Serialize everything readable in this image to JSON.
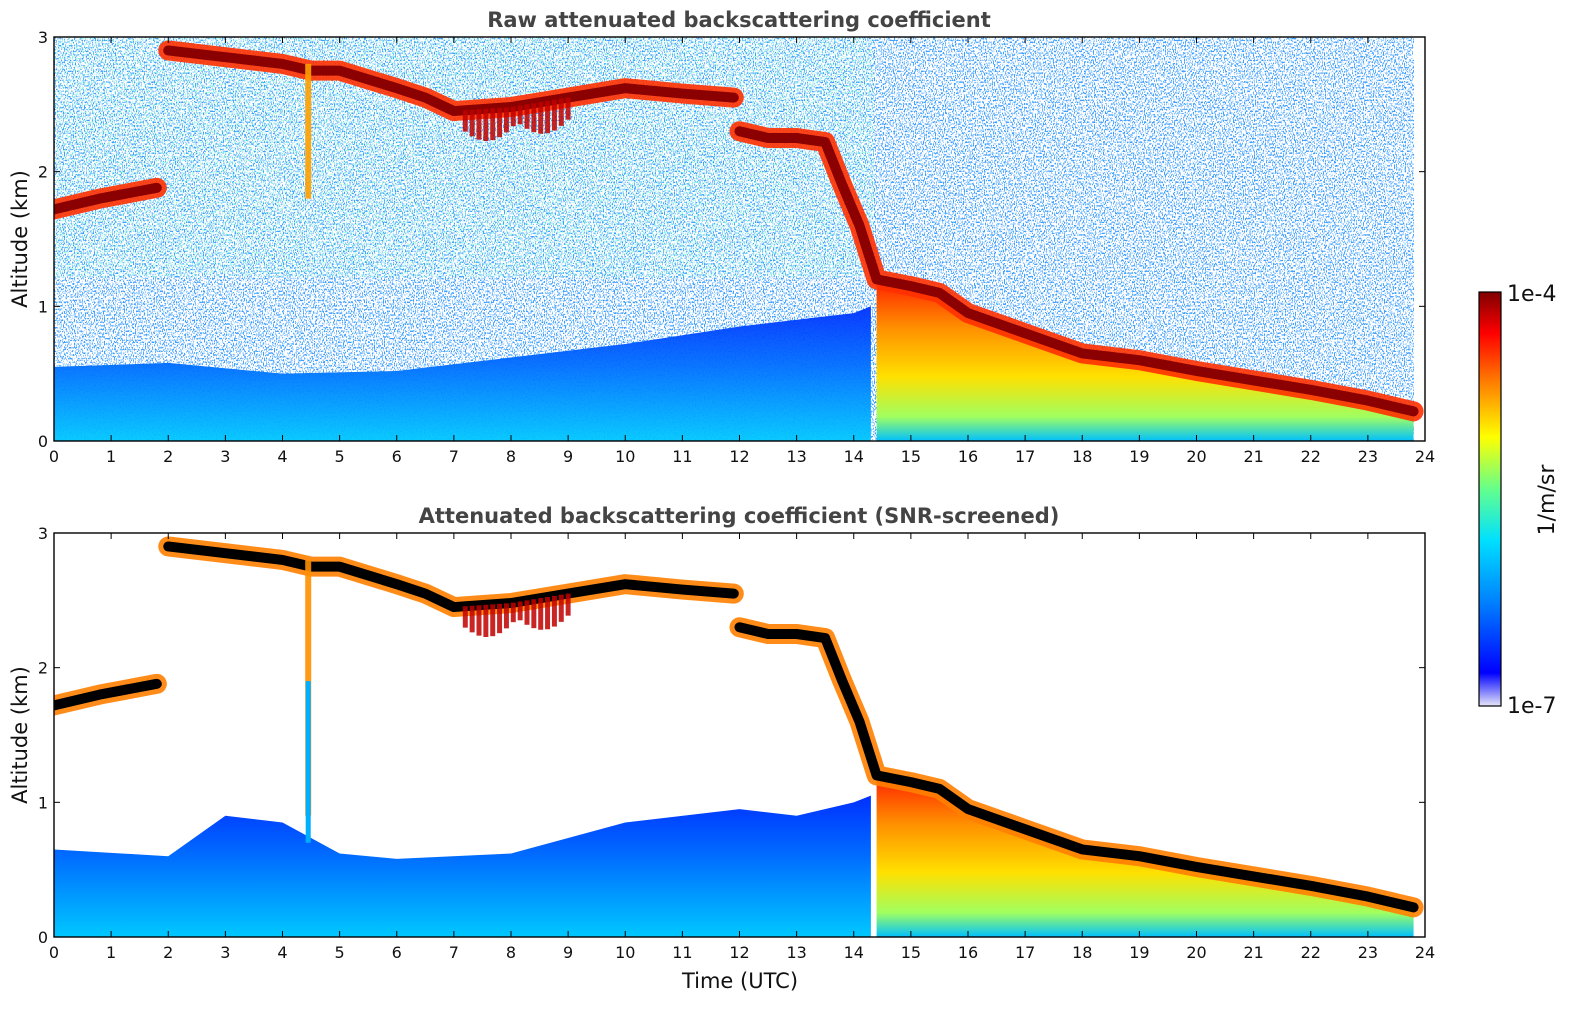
{
  "chart_data": [
    {
      "type": "heatmap",
      "id": "raw",
      "title": "Raw attenuated backscattering coefficient",
      "xlabel": "",
      "ylabel": "Altitude (km)",
      "xlim": [
        0,
        24
      ],
      "ylim": [
        0,
        3
      ],
      "xticks": [
        "0",
        "1",
        "2",
        "3",
        "4",
        "5",
        "6",
        "7",
        "8",
        "9",
        "10",
        "11",
        "12",
        "13",
        "14",
        "15",
        "16",
        "17",
        "18",
        "19",
        "20",
        "21",
        "22",
        "23",
        "24"
      ],
      "yticks": [
        "0",
        "1",
        "2",
        "3"
      ],
      "layers": {
        "boundary_layer_top_km": {
          "time": [
            0,
            2,
            4,
            6,
            8,
            10,
            12,
            13,
            14,
            14.3
          ],
          "altitude": [
            0.55,
            0.58,
            0.5,
            0.52,
            0.62,
            0.72,
            0.85,
            0.9,
            0.95,
            1.0
          ]
        },
        "cloud_upper_km": {
          "time": [
            2,
            3,
            4,
            4.5,
            5,
            6,
            6.5,
            7,
            8,
            9,
            10,
            11,
            11.9
          ],
          "altitude": [
            2.9,
            2.85,
            2.8,
            2.75,
            2.75,
            2.62,
            2.55,
            2.45,
            2.48,
            2.55,
            2.62,
            2.58,
            2.55
          ]
        },
        "cloud_lower_km": {
          "time": [
            12,
            12.5,
            13,
            13.5,
            13.8,
            14.1,
            14.4,
            15,
            15.5,
            16,
            17,
            18,
            19,
            20,
            21,
            22,
            23,
            23.8
          ],
          "altitude": [
            2.3,
            2.25,
            2.25,
            2.22,
            1.9,
            1.6,
            1.2,
            1.15,
            1.1,
            0.95,
            0.8,
            0.65,
            0.6,
            0.52,
            0.45,
            0.38,
            0.3,
            0.22
          ]
        },
        "elevated_layer_km": {
          "time": [
            0,
            0.8,
            1.8
          ],
          "altitude": [
            1.72,
            1.8,
            1.88
          ]
        }
      }
    },
    {
      "type": "heatmap",
      "id": "screened",
      "title": "Attenuated backscattering coefficient (SNR-screened)",
      "xlabel": "Time (UTC)",
      "ylabel": "Altitude (km)",
      "xlim": [
        0,
        24
      ],
      "ylim": [
        0,
        3
      ],
      "xticks": [
        "0",
        "1",
        "2",
        "3",
        "4",
        "5",
        "6",
        "7",
        "8",
        "9",
        "10",
        "11",
        "12",
        "13",
        "14",
        "15",
        "16",
        "17",
        "18",
        "19",
        "20",
        "21",
        "22",
        "23",
        "24"
      ],
      "yticks": [
        "0",
        "1",
        "2",
        "3"
      ],
      "layers": {
        "boundary_layer_top_km": {
          "time": [
            0,
            2,
            3,
            4,
            5,
            6,
            8,
            10,
            12,
            13,
            14,
            14.3
          ],
          "altitude": [
            0.65,
            0.6,
            0.9,
            0.85,
            0.62,
            0.58,
            0.62,
            0.85,
            0.95,
            0.9,
            1.0,
            1.05
          ]
        },
        "cloud_upper_km": {
          "time": [
            2,
            3,
            4,
            4.5,
            5,
            6,
            6.5,
            7,
            8,
            9,
            10,
            11,
            11.9
          ],
          "altitude": [
            2.9,
            2.85,
            2.8,
            2.75,
            2.75,
            2.62,
            2.55,
            2.45,
            2.48,
            2.55,
            2.62,
            2.58,
            2.55
          ]
        },
        "cloud_lower_km": {
          "time": [
            12,
            12.5,
            13,
            13.5,
            13.8,
            14.1,
            14.4,
            15,
            15.5,
            16,
            17,
            18,
            19,
            20,
            21,
            22,
            23,
            23.8
          ],
          "altitude": [
            2.3,
            2.25,
            2.25,
            2.22,
            1.9,
            1.6,
            1.2,
            1.15,
            1.1,
            0.95,
            0.8,
            0.65,
            0.6,
            0.52,
            0.45,
            0.38,
            0.3,
            0.22
          ]
        },
        "elevated_layer_km": {
          "time": [
            0,
            0.8,
            1.8
          ],
          "altitude": [
            1.72,
            1.8,
            1.88
          ]
        }
      }
    }
  ],
  "colorbar": {
    "label": "1/m/sr",
    "max_label": "1e-4",
    "min_label": "1e-7",
    "range": [
      1e-07,
      0.0001
    ],
    "scale": "log",
    "colormap": "jet",
    "colors": [
      "#e8e8f8",
      "#0000ff",
      "#0080ff",
      "#00e0ff",
      "#60ff90",
      "#ffff00",
      "#ff8000",
      "#ff0000",
      "#800000"
    ]
  }
}
